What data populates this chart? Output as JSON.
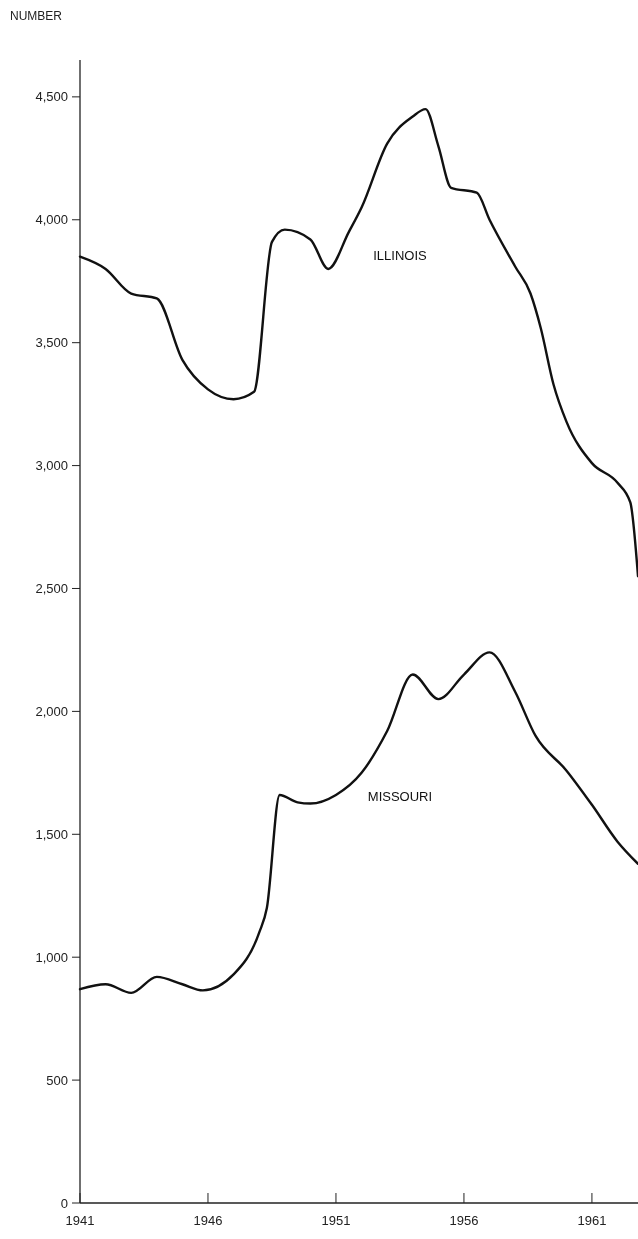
{
  "chart_data": {
    "type": "line",
    "ylabel": "NUMBER",
    "xlim": [
      1941,
      1962.8
    ],
    "ylim": [
      0,
      4650
    ],
    "xticks": [
      1941,
      1946,
      1951,
      1956,
      1961
    ],
    "yticks": [
      {
        "value": 0,
        "label": "0"
      },
      {
        "value": 500,
        "label": "500"
      },
      {
        "value": 1000,
        "label": "1,000"
      },
      {
        "value": 1500,
        "label": "1,500"
      },
      {
        "value": 2000,
        "label": "2,000"
      },
      {
        "value": 2500,
        "label": "2,500"
      },
      {
        "value": 3000,
        "label": "3,000"
      },
      {
        "value": 3500,
        "label": "3,500"
      },
      {
        "value": 4000,
        "label": "4,000"
      },
      {
        "value": 4500,
        "label": "4,500"
      }
    ],
    "grid": false,
    "series": [
      {
        "name": "ILLINOIS",
        "color": "#111111",
        "x": [
          1941,
          1942,
          1943,
          1944,
          1945,
          1946,
          1947,
          1947.8,
          1948.5,
          1949,
          1950,
          1950.7,
          1951.5,
          1952,
          1953,
          1954,
          1954.5,
          1955,
          1955.5,
          1956.5,
          1957,
          1958,
          1958.6,
          1959,
          1959.5,
          1960,
          1961,
          1962,
          1962.5,
          1962.8
        ],
        "values": [
          3850,
          3800,
          3700,
          3680,
          3430,
          3310,
          3270,
          3300,
          3910,
          3960,
          3920,
          3800,
          3950,
          4050,
          4310,
          4420,
          4450,
          4300,
          4130,
          4110,
          4000,
          3810,
          3700,
          3560,
          3330,
          3180,
          3010,
          2930,
          2850,
          2550
        ]
      },
      {
        "name": "MISSOURI",
        "color": "#111111",
        "x": [
          1941,
          1942,
          1943,
          1944,
          1945,
          1945.8,
          1947,
          1948,
          1948.3,
          1948.8,
          1949.5,
          1950,
          1951,
          1952,
          1953,
          1954,
          1955,
          1956,
          1957,
          1958,
          1958.8,
          1960,
          1961,
          1962,
          1962.8
        ],
        "values": [
          870,
          890,
          855,
          920,
          890,
          865,
          930,
          1100,
          1200,
          1660,
          1630,
          1625,
          1660,
          1750,
          1920,
          2150,
          2050,
          2150,
          2240,
          2080,
          1900,
          1760,
          1620,
          1470,
          1380
        ]
      }
    ]
  }
}
